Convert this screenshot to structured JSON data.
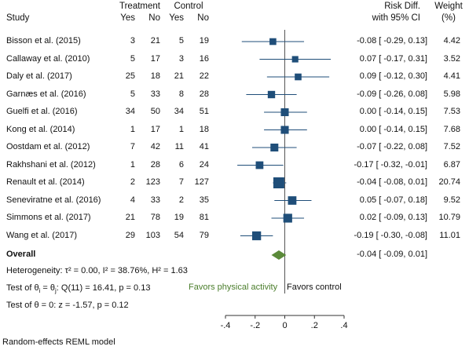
{
  "header": {
    "study": "Study",
    "treatment": "Treatment",
    "control": "Control",
    "yes1": "Yes",
    "no1": "No",
    "yes2": "Yes",
    "no2": "No",
    "risk_diff": "Risk Diff.",
    "ci": "with 95% CI",
    "weight": "Weight",
    "weight_unit": "(%)"
  },
  "rows": [
    {
      "study": "Bisson et al. (2015)",
      "ty": "3",
      "tn": "21",
      "cy": "5",
      "cn": "19",
      "ci_text": "-0.08 [ -0.29,  0.13]",
      "weight": "4.42"
    },
    {
      "study": "Callaway et al. (2010)",
      "ty": "5",
      "tn": "17",
      "cy": "3",
      "cn": "16",
      "ci_text": "0.07 [ -0.17,  0.31]",
      "weight": "3.52"
    },
    {
      "study": "Daly et al. (2017)",
      "ty": "25",
      "tn": "18",
      "cy": "21",
      "cn": "22",
      "ci_text": "0.09 [ -0.12,  0.30]",
      "weight": "4.41"
    },
    {
      "study": "Garnæs et al. (2016)",
      "ty": "5",
      "tn": "33",
      "cy": "8",
      "cn": "28",
      "ci_text": "-0.09 [ -0.26,  0.08]",
      "weight": "5.98"
    },
    {
      "study": "Guelfi et al. (2016)",
      "ty": "34",
      "tn": "50",
      "cy": "34",
      "cn": "51",
      "ci_text": "0.00 [ -0.14,  0.15]",
      "weight": "7.53"
    },
    {
      "study": "Kong et al. (2014)",
      "ty": "1",
      "tn": "17",
      "cy": "1",
      "cn": "18",
      "ci_text": "0.00 [ -0.14,  0.15]",
      "weight": "7.68"
    },
    {
      "study": "Oostdam et al. (2012)",
      "ty": "7",
      "tn": "42",
      "cy": "11",
      "cn": "41",
      "ci_text": "-0.07 [ -0.22,  0.08]",
      "weight": "7.52"
    },
    {
      "study": "Rakhshani et al. (2012)",
      "ty": "1",
      "tn": "28",
      "cy": "6",
      "cn": "24",
      "ci_text": "-0.17 [ -0.32, -0.01]",
      "weight": "6.87"
    },
    {
      "study": "Renault et al. (2014)",
      "ty": "2",
      "tn": "123",
      "cy": "7",
      "cn": "127",
      "ci_text": "-0.04 [ -0.08,  0.01]",
      "weight": "20.74"
    },
    {
      "study": "Seneviratne et al. (2016)",
      "ty": "4",
      "tn": "33",
      "cy": "2",
      "cn": "35",
      "ci_text": "0.05 [ -0.07,  0.18]",
      "weight": "9.52"
    },
    {
      "study": "Simmons et al. (2017)",
      "ty": "21",
      "tn": "78",
      "cy": "19",
      "cn": "81",
      "ci_text": "0.02 [ -0.09,  0.13]",
      "weight": "10.79"
    },
    {
      "study": "Wang et al. (2017)",
      "ty": "29",
      "tn": "103",
      "cy": "54",
      "cn": "79",
      "ci_text": "-0.19 [ -0.30, -0.08]",
      "weight": "11.01"
    }
  ],
  "overall": {
    "label": "Overall",
    "ci_text": "-0.04 [ -0.09,  0.01]"
  },
  "stats": {
    "heterogeneity": "Heterogeneity: τ² = 0.00, I² = 38.76%, H² = 1.63",
    "test_theta_prefix": "Test of θ",
    "test_theta_sub1": "i",
    "test_theta_mid": " = θ",
    "test_theta_sub2": "j",
    "test_theta_rest": ": Q(11) = 16.41, p = 0.13",
    "test_zero": "Test of θ = 0: z = -1.57, p = 0.12"
  },
  "favors_left": "Favors physical activity",
  "favors_right": "Favors control",
  "footer": "Random-effects REML model",
  "colors": {
    "marker": "#1f4e79",
    "overall": "#5b8a3a",
    "favors_left": "#4a7d2b"
  },
  "chart_data": {
    "type": "forest",
    "xlim": [
      -0.4,
      0.4
    ],
    "x_ticks": [
      -0.4,
      -0.2,
      0,
      0.2,
      0.4
    ],
    "x_tick_labels": [
      "-.4",
      "-.2",
      "0",
      ".2",
      ".4"
    ],
    "series": [
      {
        "study": "Bisson et al. (2015)",
        "estimate": -0.08,
        "lower": -0.29,
        "upper": 0.13,
        "weight": 4.42
      },
      {
        "study": "Callaway et al. (2010)",
        "estimate": 0.07,
        "lower": -0.17,
        "upper": 0.31,
        "weight": 3.52
      },
      {
        "study": "Daly et al. (2017)",
        "estimate": 0.09,
        "lower": -0.12,
        "upper": 0.3,
        "weight": 4.41
      },
      {
        "study": "Garnæs et al. (2016)",
        "estimate": -0.09,
        "lower": -0.26,
        "upper": 0.08,
        "weight": 5.98
      },
      {
        "study": "Guelfi et al. (2016)",
        "estimate": 0.0,
        "lower": -0.14,
        "upper": 0.15,
        "weight": 7.53
      },
      {
        "study": "Kong et al. (2014)",
        "estimate": 0.0,
        "lower": -0.14,
        "upper": 0.15,
        "weight": 7.68
      },
      {
        "study": "Oostdam et al. (2012)",
        "estimate": -0.07,
        "lower": -0.22,
        "upper": 0.08,
        "weight": 7.52
      },
      {
        "study": "Rakhshani et al. (2012)",
        "estimate": -0.17,
        "lower": -0.32,
        "upper": -0.01,
        "weight": 6.87
      },
      {
        "study": "Renault et al. (2014)",
        "estimate": -0.04,
        "lower": -0.08,
        "upper": 0.01,
        "weight": 20.74
      },
      {
        "study": "Seneviratne et al. (2016)",
        "estimate": 0.05,
        "lower": -0.07,
        "upper": 0.18,
        "weight": 9.52
      },
      {
        "study": "Simmons et al. (2017)",
        "estimate": 0.02,
        "lower": -0.09,
        "upper": 0.13,
        "weight": 10.79
      },
      {
        "study": "Wang et al. (2017)",
        "estimate": -0.19,
        "lower": -0.3,
        "upper": -0.08,
        "weight": 11.01
      }
    ],
    "overall": {
      "estimate": -0.04,
      "lower": -0.09,
      "upper": 0.01
    }
  }
}
